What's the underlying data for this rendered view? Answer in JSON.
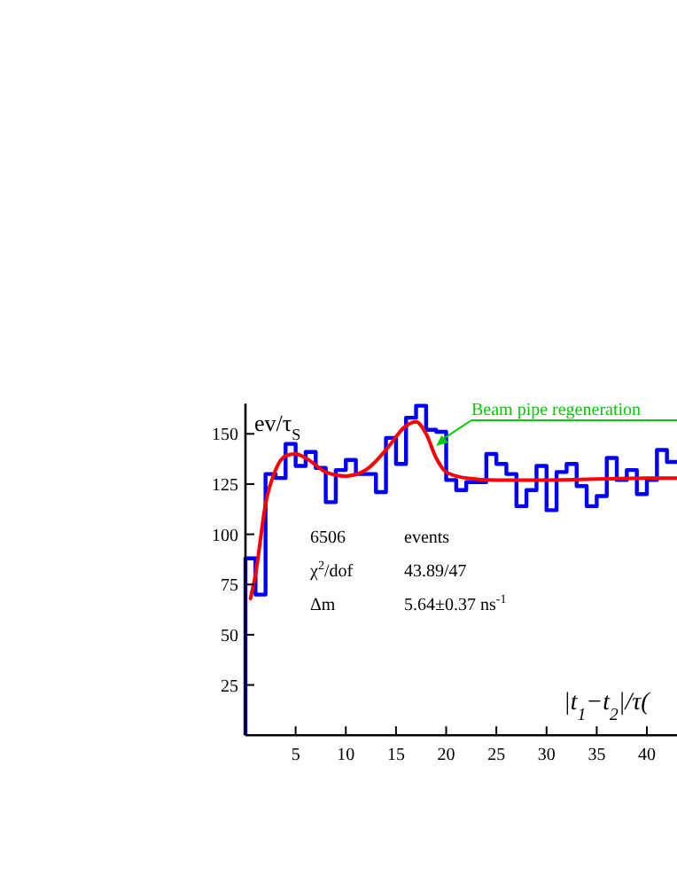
{
  "chart_data": {
    "type": "histogram",
    "ylabel": "ev/τ$_{S}$",
    "xlabel": "|t$_{1}$−t$_{2}$|/τ(",
    "bins": [
      0,
      1,
      2,
      3,
      4,
      5,
      6,
      7,
      8,
      9,
      10,
      11,
      12,
      13,
      14,
      15,
      16,
      17,
      18,
      19,
      20,
      21,
      22,
      23,
      24,
      25,
      26,
      27,
      28,
      29,
      30,
      31,
      32,
      33,
      34,
      35,
      36,
      37,
      38,
      39,
      40,
      41,
      42,
      43
    ],
    "series": [
      {
        "color": "#0000ff",
        "values": [
          88,
          70,
          130,
          128,
          145,
          134,
          141,
          133,
          116,
          132,
          137,
          130,
          130,
          121,
          148,
          135,
          158,
          164,
          152,
          151,
          127,
          122,
          126,
          126,
          140,
          135,
          130,
          114,
          122,
          134,
          112,
          131,
          135,
          124,
          114,
          119,
          138,
          127,
          132,
          120,
          127,
          142,
          136
        ]
      },
      {
        "type": "line",
        "color": "#ff0000",
        "x": [
          0.5,
          1,
          2,
          3,
          4,
          5,
          6,
          8,
          10,
          12,
          14,
          16,
          17,
          18,
          19,
          20,
          22,
          25,
          30,
          40,
          43
        ],
        "values": [
          68,
          80,
          115,
          132,
          139,
          140,
          138,
          131,
          129,
          132,
          142,
          154,
          156,
          150,
          138,
          131,
          128,
          127,
          127,
          128,
          128
        ]
      }
    ],
    "xlim": [
      0,
      43
    ],
    "ylim": [
      0,
      165
    ],
    "xticks": [
      5,
      10,
      15,
      20,
      25,
      30,
      35,
      40
    ],
    "yticks": [
      25,
      50,
      75,
      100,
      125,
      150
    ],
    "annotations": [
      {
        "text": "Beam pipe regeneration",
        "x": 19,
        "y": 144
      },
      "6506",
      "events",
      "χ$^{2}$/dof",
      "43.89/47",
      "Δm",
      "5.64±0.37 ns$^{-1}$"
    ],
    "grid": false
  }
}
